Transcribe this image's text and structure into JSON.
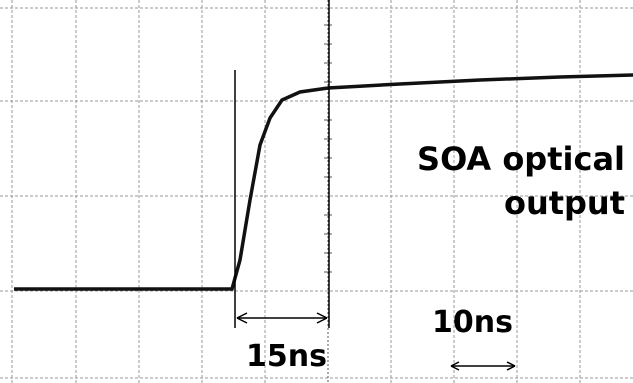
{
  "annotations": {
    "signal_label": [
      "SOA optical",
      "output"
    ],
    "rise_time": "15ns",
    "scale": "10ns"
  }
}
